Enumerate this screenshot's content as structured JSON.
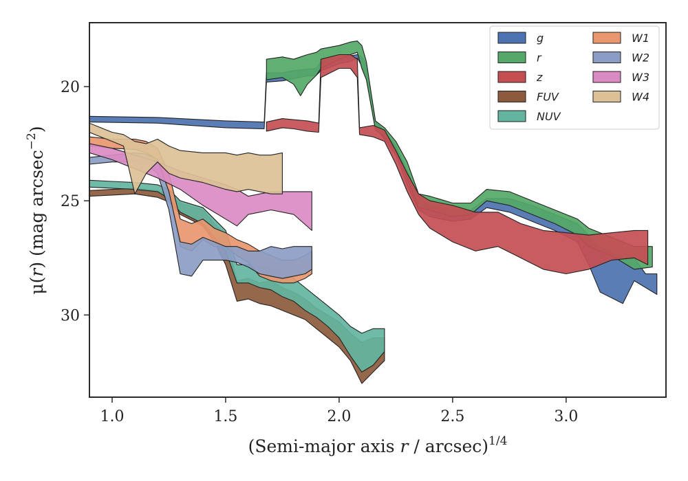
{
  "chart_data": {
    "type": "area",
    "xlabel": "(Semi-major axis r / arcsec)",
    "xlabel_main": "(Semi-major axis ",
    "xlabel_var": "r",
    "xlabel_rest": " / arcsec)",
    "xlabel_power": "1/4",
    "ylabel": "μ(r) (mag arcsec",
    "ylabel_main": "μ(",
    "ylabel_var": "r",
    "ylabel_rest": ") (mag arcsec",
    "ylabel_power": "−2",
    "ylabel_close": ")",
    "xlim": [
      0.9,
      3.44
    ],
    "ylim": [
      33.6,
      17.2
    ],
    "y_inverted": true,
    "x_ticks": [
      1.0,
      1.5,
      2.0,
      2.5,
      3.0
    ],
    "x_tick_labels": [
      "1.0",
      "1.5",
      "2.0",
      "2.5",
      "3.0"
    ],
    "y_ticks": [
      20,
      25,
      30
    ],
    "y_tick_labels": [
      "20",
      "25",
      "30"
    ],
    "grid": false,
    "legend_placement": "top-right",
    "legend_columns": 2,
    "series": [
      {
        "name": "g",
        "color": "#4C72B0",
        "band": [
          [
            0.9,
            21.3,
            21.55
          ],
          [
            1.2,
            21.35,
            21.6
          ],
          [
            1.5,
            21.5,
            21.8
          ],
          [
            1.67,
            21.55,
            21.85
          ],
          [
            1.68,
            19.4,
            19.8
          ],
          [
            1.75,
            19.4,
            19.75
          ],
          [
            1.8,
            19.3,
            19.65
          ],
          [
            1.85,
            19.25,
            19.55
          ],
          [
            1.9,
            19.2,
            19.5
          ],
          [
            1.92,
            18.9,
            19.3
          ],
          [
            2.0,
            18.7,
            19.0
          ],
          [
            2.05,
            18.65,
            18.9
          ],
          [
            2.08,
            18.6,
            18.75
          ],
          [
            2.1,
            18.7,
            19.1
          ],
          [
            2.12,
            19.0,
            19.6
          ],
          [
            2.16,
            21.5,
            21.8
          ],
          [
            2.2,
            22.0,
            22.3
          ],
          [
            2.25,
            22.6,
            23.0
          ],
          [
            2.3,
            23.7,
            24.3
          ],
          [
            2.35,
            24.8,
            25.4
          ],
          [
            2.4,
            25.2,
            25.7
          ],
          [
            2.5,
            25.4,
            25.9
          ],
          [
            2.58,
            25.4,
            25.8
          ],
          [
            2.65,
            24.9,
            25.3
          ],
          [
            2.75,
            24.9,
            25.5
          ],
          [
            2.85,
            25.2,
            25.9
          ],
          [
            2.95,
            25.6,
            26.3
          ],
          [
            3.05,
            26.0,
            26.8
          ],
          [
            3.1,
            26.5,
            27.8
          ],
          [
            3.15,
            27.0,
            29.0
          ],
          [
            3.25,
            27.5,
            29.5
          ],
          [
            3.3,
            27.5,
            28.5
          ],
          [
            3.35,
            28.2,
            28.8
          ],
          [
            3.4,
            28.2,
            29.1
          ]
        ]
      },
      {
        "name": "r",
        "color": "#55A868",
        "band": [
          [
            1.68,
            18.8,
            19.7
          ],
          [
            1.75,
            18.7,
            19.6
          ],
          [
            1.8,
            18.8,
            19.9
          ],
          [
            1.83,
            18.7,
            20.4
          ],
          [
            1.86,
            18.6,
            19.9
          ],
          [
            1.9,
            18.5,
            19.5
          ],
          [
            1.92,
            18.35,
            19.2
          ],
          [
            2.0,
            18.2,
            18.8
          ],
          [
            2.05,
            18.05,
            18.6
          ],
          [
            2.08,
            18.0,
            18.5
          ],
          [
            2.1,
            18.2,
            19.2
          ],
          [
            2.12,
            18.9,
            19.7
          ],
          [
            2.16,
            21.5,
            21.9
          ],
          [
            2.2,
            21.8,
            22.2
          ],
          [
            2.25,
            22.4,
            22.8
          ],
          [
            2.3,
            23.3,
            24.0
          ],
          [
            2.35,
            24.7,
            25.3
          ],
          [
            2.4,
            24.8,
            25.4
          ],
          [
            2.5,
            25.1,
            25.7
          ],
          [
            2.58,
            25.1,
            25.6
          ],
          [
            2.65,
            24.5,
            25.0
          ],
          [
            2.75,
            24.6,
            25.2
          ],
          [
            2.85,
            25.0,
            25.6
          ],
          [
            2.95,
            25.4,
            26.0
          ],
          [
            3.05,
            25.8,
            26.5
          ],
          [
            3.1,
            26.2,
            27.0
          ],
          [
            3.2,
            26.6,
            27.4
          ],
          [
            3.3,
            27.0,
            28.0
          ],
          [
            3.38,
            27.0,
            27.9
          ]
        ]
      },
      {
        "name": "z",
        "color": "#C44E52",
        "band": [
          [
            1.68,
            21.55,
            21.95
          ],
          [
            1.75,
            21.4,
            21.8
          ],
          [
            1.8,
            21.45,
            21.85
          ],
          [
            1.86,
            21.5,
            21.95
          ],
          [
            1.91,
            21.6,
            22.0
          ],
          [
            1.92,
            18.8,
            19.6
          ],
          [
            2.0,
            18.6,
            19.2
          ],
          [
            2.05,
            18.6,
            19.2
          ],
          [
            2.08,
            18.8,
            19.6
          ],
          [
            2.09,
            21.8,
            22.1
          ],
          [
            2.15,
            21.7,
            22.2
          ],
          [
            2.2,
            21.9,
            22.4
          ],
          [
            2.25,
            22.8,
            23.4
          ],
          [
            2.3,
            23.8,
            24.6
          ],
          [
            2.35,
            24.7,
            25.6
          ],
          [
            2.4,
            25.0,
            26.2
          ],
          [
            2.5,
            25.2,
            26.8
          ],
          [
            2.6,
            25.5,
            27.2
          ],
          [
            2.7,
            25.5,
            27.0
          ],
          [
            2.8,
            26.0,
            27.5
          ],
          [
            2.9,
            26.3,
            28.0
          ],
          [
            3.0,
            26.4,
            28.2
          ],
          [
            3.1,
            26.5,
            28.0
          ],
          [
            3.2,
            26.4,
            27.6
          ],
          [
            3.3,
            26.3,
            27.5
          ],
          [
            3.36,
            26.3,
            27.8
          ]
        ]
      },
      {
        "name": "FUV",
        "color": "#8C5A3C",
        "band": [
          [
            0.9,
            24.55,
            24.8
          ],
          [
            1.0,
            24.5,
            24.75
          ],
          [
            1.1,
            24.45,
            24.7
          ],
          [
            1.2,
            24.55,
            24.85
          ],
          [
            1.25,
            24.75,
            25.05
          ],
          [
            1.3,
            25.1,
            25.6
          ],
          [
            1.4,
            25.4,
            26.1
          ],
          [
            1.45,
            26.0,
            26.8
          ],
          [
            1.5,
            26.5,
            27.8
          ],
          [
            1.55,
            28.5,
            29.4
          ],
          [
            1.6,
            28.4,
            29.3
          ],
          [
            1.65,
            28.6,
            29.5
          ],
          [
            1.7,
            28.5,
            29.6
          ],
          [
            1.75,
            28.8,
            29.8
          ],
          [
            1.8,
            29.0,
            30.0
          ],
          [
            1.85,
            29.3,
            30.2
          ],
          [
            1.9,
            29.7,
            30.6
          ],
          [
            1.95,
            30.0,
            31.0
          ],
          [
            2.0,
            30.3,
            31.4
          ],
          [
            2.05,
            30.8,
            32.0
          ],
          [
            2.1,
            31.2,
            33.0
          ],
          [
            2.15,
            31.0,
            32.5
          ],
          [
            2.2,
            31.0,
            32.0
          ]
        ]
      },
      {
        "name": "NUV",
        "color": "#64B5A0",
        "band": [
          [
            0.9,
            24.1,
            24.4
          ],
          [
            1.0,
            24.15,
            24.45
          ],
          [
            1.1,
            24.2,
            24.5
          ],
          [
            1.2,
            24.3,
            24.6
          ],
          [
            1.25,
            24.5,
            24.9
          ],
          [
            1.3,
            25.0,
            25.5
          ],
          [
            1.4,
            25.3,
            26.0
          ],
          [
            1.45,
            25.8,
            26.6
          ],
          [
            1.5,
            26.3,
            27.2
          ],
          [
            1.55,
            27.8,
            28.6
          ],
          [
            1.6,
            27.8,
            28.6
          ],
          [
            1.65,
            27.9,
            28.8
          ],
          [
            1.7,
            28.0,
            28.9
          ],
          [
            1.75,
            28.2,
            29.2
          ],
          [
            1.8,
            28.4,
            29.4
          ],
          [
            1.85,
            28.8,
            29.8
          ],
          [
            1.9,
            29.2,
            30.1
          ],
          [
            1.95,
            29.6,
            30.5
          ],
          [
            2.0,
            30.0,
            31.0
          ],
          [
            2.05,
            30.5,
            31.8
          ],
          [
            2.1,
            30.8,
            32.5
          ],
          [
            2.15,
            30.6,
            32.2
          ],
          [
            2.2,
            30.6,
            31.6
          ]
        ]
      },
      {
        "name": "W1",
        "color": "#E8976F",
        "band": [
          [
            0.9,
            22.2,
            22.6
          ],
          [
            1.0,
            22.3,
            22.7
          ],
          [
            1.1,
            22.3,
            22.75
          ],
          [
            1.15,
            22.4,
            22.9
          ],
          [
            1.2,
            22.7,
            23.2
          ],
          [
            1.25,
            23.8,
            24.6
          ],
          [
            1.3,
            25.8,
            27.0
          ],
          [
            1.35,
            26.0,
            27.2
          ],
          [
            1.4,
            25.8,
            26.7
          ],
          [
            1.45,
            26.2,
            27.0
          ],
          [
            1.5,
            26.4,
            27.0
          ],
          [
            1.55,
            26.7,
            27.4
          ],
          [
            1.6,
            26.9,
            27.7
          ],
          [
            1.65,
            27.2,
            28.3
          ],
          [
            1.7,
            27.4,
            28.5
          ],
          [
            1.75,
            27.6,
            28.6
          ],
          [
            1.8,
            27.6,
            28.6
          ],
          [
            1.85,
            27.4,
            28.4
          ],
          [
            1.88,
            27.2,
            28.2
          ]
        ]
      },
      {
        "name": "W2",
        "color": "#8C9DC4",
        "band": [
          [
            0.9,
            23.1,
            23.4
          ],
          [
            1.0,
            23.0,
            23.3
          ],
          [
            1.1,
            22.9,
            23.3
          ],
          [
            1.15,
            22.95,
            23.4
          ],
          [
            1.2,
            23.2,
            23.8
          ],
          [
            1.25,
            24.6,
            25.4
          ],
          [
            1.3,
            26.8,
            28.2
          ],
          [
            1.35,
            26.9,
            28.3
          ],
          [
            1.4,
            26.6,
            27.6
          ],
          [
            1.45,
            26.8,
            27.6
          ],
          [
            1.5,
            27.0,
            27.6
          ],
          [
            1.55,
            27.0,
            27.7
          ],
          [
            1.6,
            27.2,
            27.9
          ],
          [
            1.65,
            27.2,
            28.2
          ],
          [
            1.7,
            27.0,
            28.3
          ],
          [
            1.75,
            27.1,
            28.4
          ],
          [
            1.8,
            27.0,
            28.3
          ],
          [
            1.85,
            27.0,
            28.2
          ],
          [
            1.88,
            27.0,
            28.0
          ]
        ]
      },
      {
        "name": "W3",
        "color": "#DA8BC3",
        "band": [
          [
            0.9,
            22.5,
            22.9
          ],
          [
            1.0,
            22.7,
            23.2
          ],
          [
            1.1,
            23.0,
            23.6
          ],
          [
            1.2,
            23.3,
            24.0
          ],
          [
            1.3,
            23.7,
            24.5
          ],
          [
            1.4,
            24.0,
            25.2
          ],
          [
            1.5,
            24.3,
            25.8
          ],
          [
            1.55,
            24.5,
            26.1
          ],
          [
            1.6,
            24.8,
            25.6
          ],
          [
            1.7,
            24.6,
            25.4
          ],
          [
            1.8,
            24.6,
            25.6
          ],
          [
            1.88,
            24.6,
            26.3
          ]
        ]
      },
      {
        "name": "W4",
        "color": "#DCC197",
        "band": [
          [
            0.9,
            21.6,
            22.0
          ],
          [
            0.95,
            21.8,
            22.2
          ],
          [
            1.0,
            22.0,
            22.4
          ],
          [
            1.05,
            22.1,
            22.6
          ],
          [
            1.1,
            22.4,
            24.7
          ],
          [
            1.15,
            22.5,
            23.8
          ],
          [
            1.2,
            22.3,
            23.3
          ],
          [
            1.25,
            22.6,
            23.8
          ],
          [
            1.3,
            22.8,
            24.0
          ],
          [
            1.4,
            22.9,
            24.2
          ],
          [
            1.5,
            22.9,
            24.5
          ],
          [
            1.55,
            23.0,
            24.6
          ],
          [
            1.6,
            22.9,
            24.5
          ],
          [
            1.65,
            23.0,
            24.6
          ],
          [
            1.7,
            23.0,
            24.7
          ],
          [
            1.75,
            22.9,
            24.7
          ]
        ]
      }
    ]
  }
}
